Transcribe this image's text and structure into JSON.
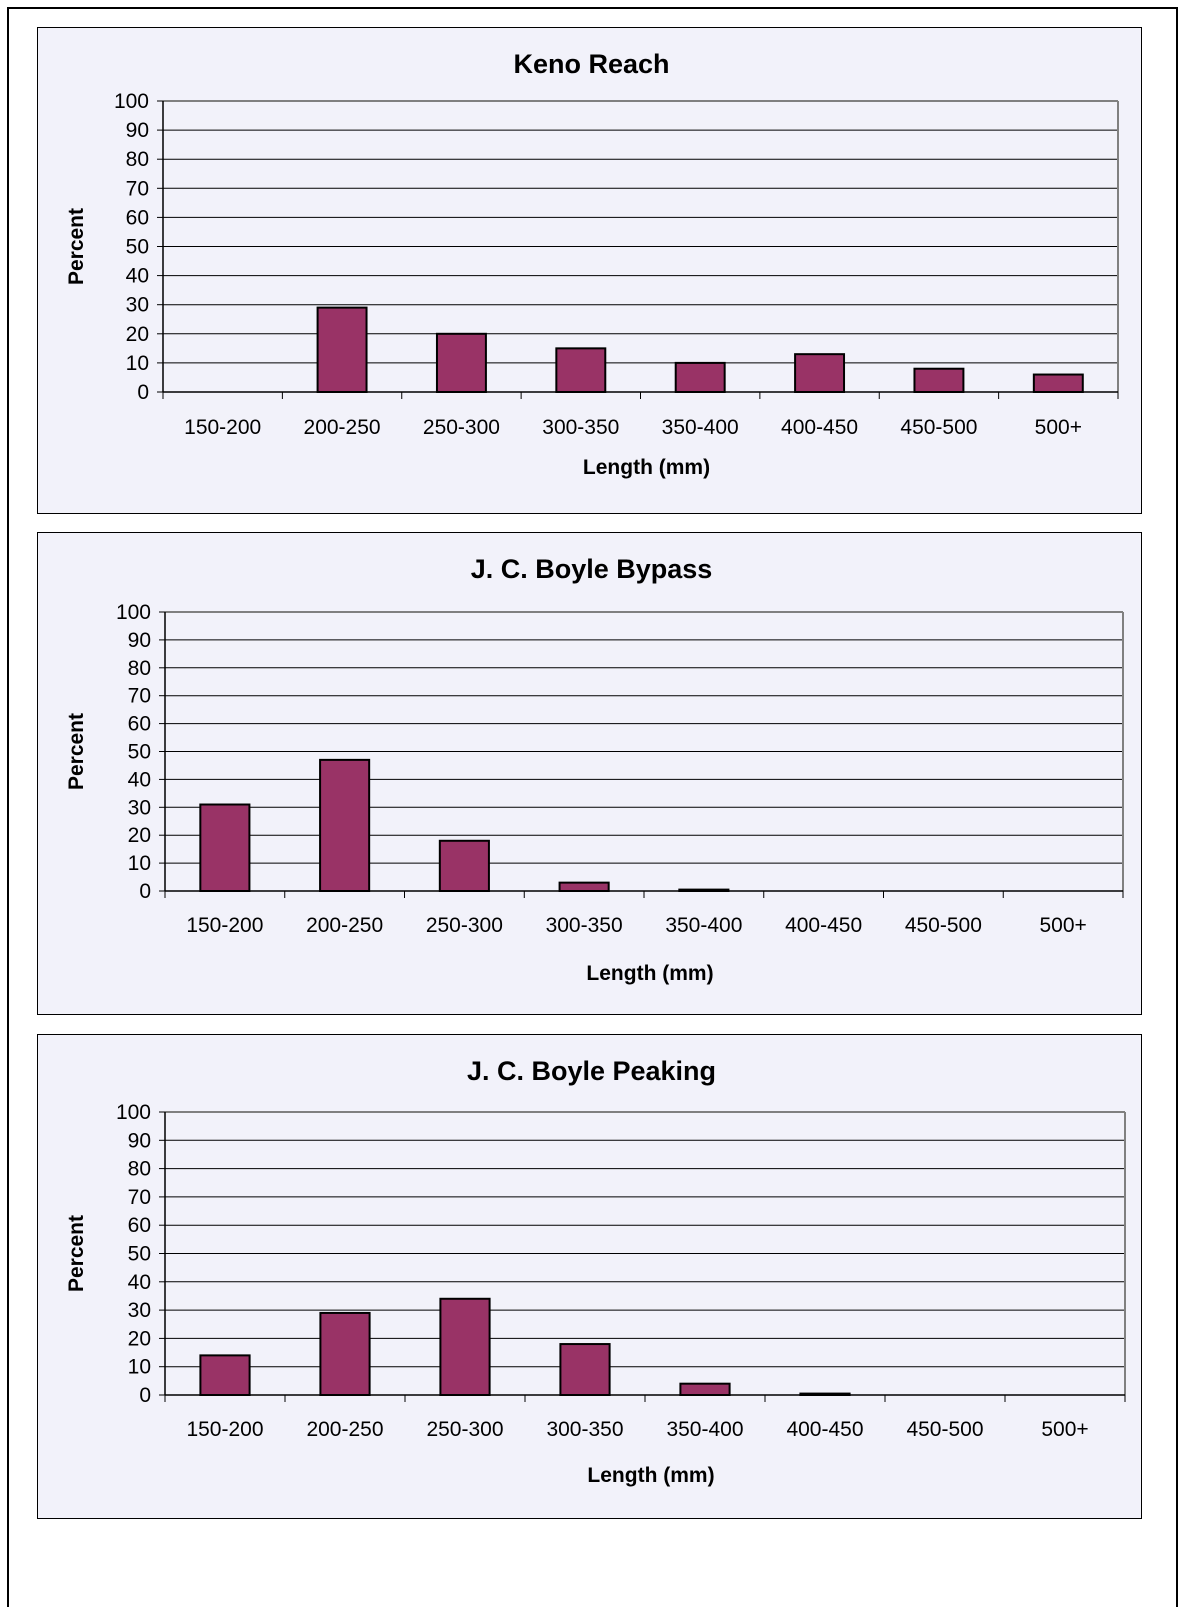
{
  "chart_data": [
    {
      "type": "bar",
      "title": "Keno Reach",
      "xlabel": "Length (mm)",
      "ylabel": "Percent",
      "ylim": [
        0,
        100
      ],
      "yticks": [
        0,
        10,
        20,
        30,
        40,
        50,
        60,
        70,
        80,
        90,
        100
      ],
      "categories": [
        "150-200",
        "200-250",
        "250-300",
        "300-350",
        "350-400",
        "400-450",
        "450-500",
        "500+"
      ],
      "values": [
        0,
        29,
        20,
        15,
        10,
        13,
        8,
        6
      ],
      "grid": true,
      "bar_color": "#993366"
    },
    {
      "type": "bar",
      "title": "J. C. Boyle Bypass",
      "xlabel": "Length (mm)",
      "ylabel": "Percent",
      "ylim": [
        0,
        100
      ],
      "yticks": [
        0,
        10,
        20,
        30,
        40,
        50,
        60,
        70,
        80,
        90,
        100
      ],
      "categories": [
        "150-200",
        "200-250",
        "250-300",
        "300-350",
        "350-400",
        "400-450",
        "450-500",
        "500+"
      ],
      "values": [
        31,
        47,
        18,
        3,
        0.5,
        0,
        0,
        0
      ],
      "grid": true,
      "bar_color": "#993366"
    },
    {
      "type": "bar",
      "title": "J. C. Boyle Peaking",
      "xlabel": "Length (mm)",
      "ylabel": "Percent",
      "ylim": [
        0,
        100
      ],
      "yticks": [
        0,
        10,
        20,
        30,
        40,
        50,
        60,
        70,
        80,
        90,
        100
      ],
      "categories": [
        "150-200",
        "200-250",
        "250-300",
        "300-350",
        "350-400",
        "400-450",
        "450-500",
        "500+"
      ],
      "values": [
        14,
        29,
        34,
        18,
        4,
        0.5,
        0,
        0
      ],
      "grid": true,
      "bar_color": "#993366"
    }
  ]
}
